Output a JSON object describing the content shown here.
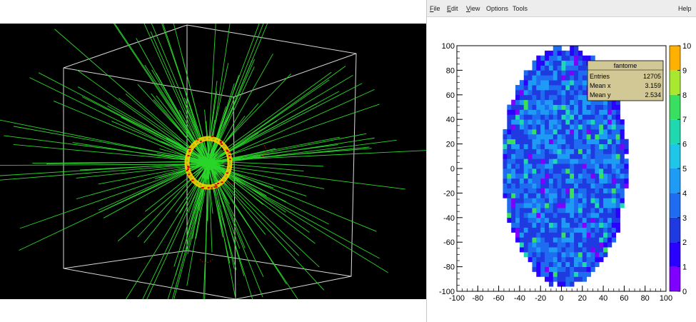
{
  "menubar": {
    "items": [
      {
        "label": "File",
        "accel": "F"
      },
      {
        "label": "Edit",
        "accel": "E"
      },
      {
        "label": "View",
        "accel": "V"
      },
      {
        "label": "Options",
        "accel": ""
      },
      {
        "label": "Tools",
        "accel": ""
      }
    ],
    "help": "Help"
  },
  "stats": {
    "title": "fantome",
    "rows": [
      {
        "label": "Entries",
        "value": "12705"
      },
      {
        "label": "Mean x",
        "value": "3.159"
      },
      {
        "label": "Mean y",
        "value": "2.534"
      }
    ]
  },
  "chart_data": {
    "type": "heatmap",
    "title": "",
    "xlabel": "",
    "ylabel": "",
    "xlim": [
      -100,
      100
    ],
    "ylim": [
      -100,
      100
    ],
    "zlim": [
      0,
      10
    ],
    "xticks": [
      -100,
      -80,
      -60,
      -40,
      -20,
      0,
      20,
      40,
      60,
      80,
      100
    ],
    "yticks": [
      -100,
      -80,
      -60,
      -40,
      -20,
      0,
      20,
      40,
      60,
      80,
      100
    ],
    "zticks": [
      0,
      1,
      2,
      3,
      4,
      5,
      6,
      7,
      8,
      9,
      10
    ],
    "palette": [
      "#7f00ff",
      "#2a00ff",
      "#1f3ae0",
      "#1e6cf0",
      "#1e9bf5",
      "#1fc6e8",
      "#20d8b0",
      "#39e060",
      "#a8e830",
      "#ffb000",
      "#ff2020"
    ],
    "grid": false,
    "legend": "stats box top-right"
  },
  "colors": {
    "track": "#2bd52b",
    "hit": "#d40000",
    "ring": "#ffd000",
    "frame": "#d8d8d8",
    "stats_fill": "#d2c896"
  }
}
